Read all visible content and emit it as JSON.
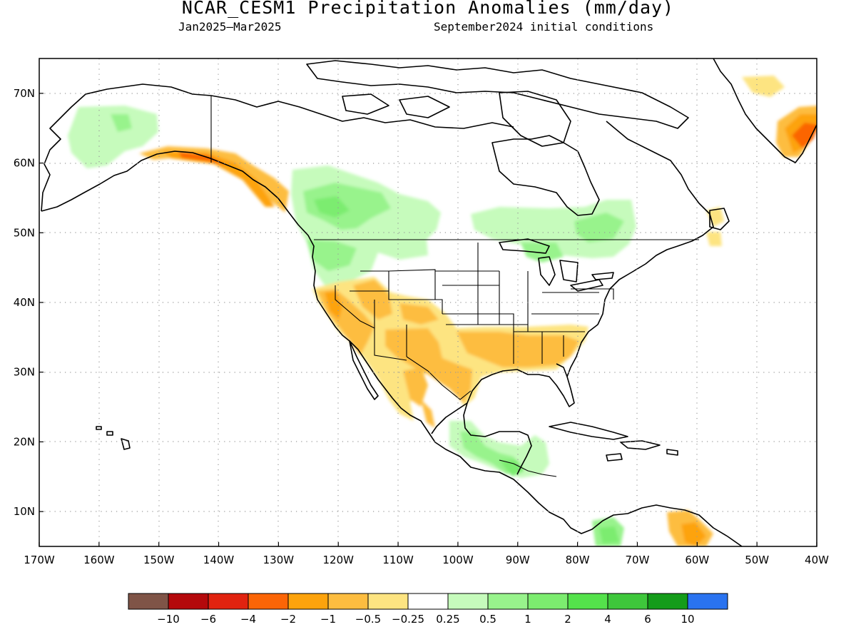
{
  "title": "NCAR_CESM1 Precipitation Anomalies (mm/day)",
  "period": "Jan2025–Mar2025",
  "initial_conditions": "September2024 initial conditions",
  "map": {
    "lon_range": [
      -170,
      -40
    ],
    "lat_range": [
      5,
      75
    ],
    "lon_ticks": [
      {
        "value": -170,
        "label": "170W"
      },
      {
        "value": -160,
        "label": "160W"
      },
      {
        "value": -150,
        "label": "150W"
      },
      {
        "value": -140,
        "label": "140W"
      },
      {
        "value": -130,
        "label": "130W"
      },
      {
        "value": -120,
        "label": "120W"
      },
      {
        "value": -110,
        "label": "110W"
      },
      {
        "value": -100,
        "label": "100W"
      },
      {
        "value": -90,
        "label": "90W"
      },
      {
        "value": -80,
        "label": "80W"
      },
      {
        "value": -70,
        "label": "70W"
      },
      {
        "value": -60,
        "label": "60W"
      },
      {
        "value": -50,
        "label": "50W"
      },
      {
        "value": -40,
        "label": "40W"
      }
    ],
    "lat_ticks": [
      {
        "value": 10,
        "label": "10N"
      },
      {
        "value": 20,
        "label": "20N"
      },
      {
        "value": 30,
        "label": "30N"
      },
      {
        "value": 40,
        "label": "40N"
      },
      {
        "value": 50,
        "label": "50N"
      },
      {
        "value": 60,
        "label": "60N"
      },
      {
        "value": 70,
        "label": "70N"
      }
    ],
    "grid": "dotted"
  },
  "colorbar": {
    "colors": [
      "#7f5447",
      "#b4090b",
      "#e1230f",
      "#fb6506",
      "#fda30c",
      "#fdbd40",
      "#fde481",
      "#ffffff",
      "#c6fbbc",
      "#98f38c",
      "#7cec6f",
      "#54e24b",
      "#3ec73b",
      "#149c1a",
      "#2a73f0"
    ],
    "labels": [
      "−10",
      "−6",
      "−4",
      "−2",
      "−1",
      "−0.5",
      "−0.25",
      "0.25",
      "0.5",
      "1",
      "2",
      "4",
      "6",
      "10"
    ]
  }
}
